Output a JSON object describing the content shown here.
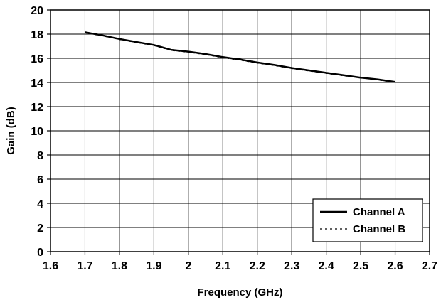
{
  "chart_data": {
    "type": "line",
    "title": "",
    "xlabel": "Frequency (GHz)",
    "ylabel": "Gain (dB)",
    "xlim": [
      1.6,
      2.7
    ],
    "ylim": [
      0,
      20
    ],
    "x_ticks": [
      "1.6",
      "1.7",
      "1.8",
      "1.9",
      "2",
      "2.1",
      "2.2",
      "2.3",
      "2.4",
      "2.5",
      "2.6",
      "2.7"
    ],
    "y_ticks": [
      "0",
      "2",
      "4",
      "6",
      "8",
      "10",
      "12",
      "14",
      "16",
      "18",
      "20"
    ],
    "grid": true,
    "legend_position": "bottom-right",
    "series": [
      {
        "name": "Channel A",
        "style": "solid",
        "color": "#000000",
        "x": [
          1.7,
          1.75,
          1.8,
          1.85,
          1.9,
          1.92,
          1.95,
          2.0,
          2.05,
          2.1,
          2.15,
          2.2,
          2.25,
          2.3,
          2.35,
          2.4,
          2.45,
          2.5,
          2.55,
          2.6
        ],
        "y": [
          18.15,
          17.9,
          17.6,
          17.35,
          17.1,
          16.95,
          16.7,
          16.55,
          16.35,
          16.1,
          15.9,
          15.65,
          15.45,
          15.2,
          15.0,
          14.8,
          14.6,
          14.4,
          14.25,
          14.05
        ]
      },
      {
        "name": "Channel B",
        "style": "dashed",
        "color": "#000000",
        "x": [
          1.7,
          1.75,
          1.8,
          1.85,
          1.9,
          1.92,
          1.95,
          2.0,
          2.05,
          2.1,
          2.15,
          2.2,
          2.25,
          2.3,
          2.35,
          2.4,
          2.45,
          2.5,
          2.55,
          2.6
        ],
        "y": [
          18.1,
          17.85,
          17.55,
          17.3,
          17.05,
          16.9,
          16.65,
          16.5,
          16.3,
          16.05,
          15.85,
          15.6,
          15.4,
          15.15,
          14.95,
          14.75,
          14.55,
          14.4,
          14.2,
          14.0
        ]
      }
    ]
  }
}
